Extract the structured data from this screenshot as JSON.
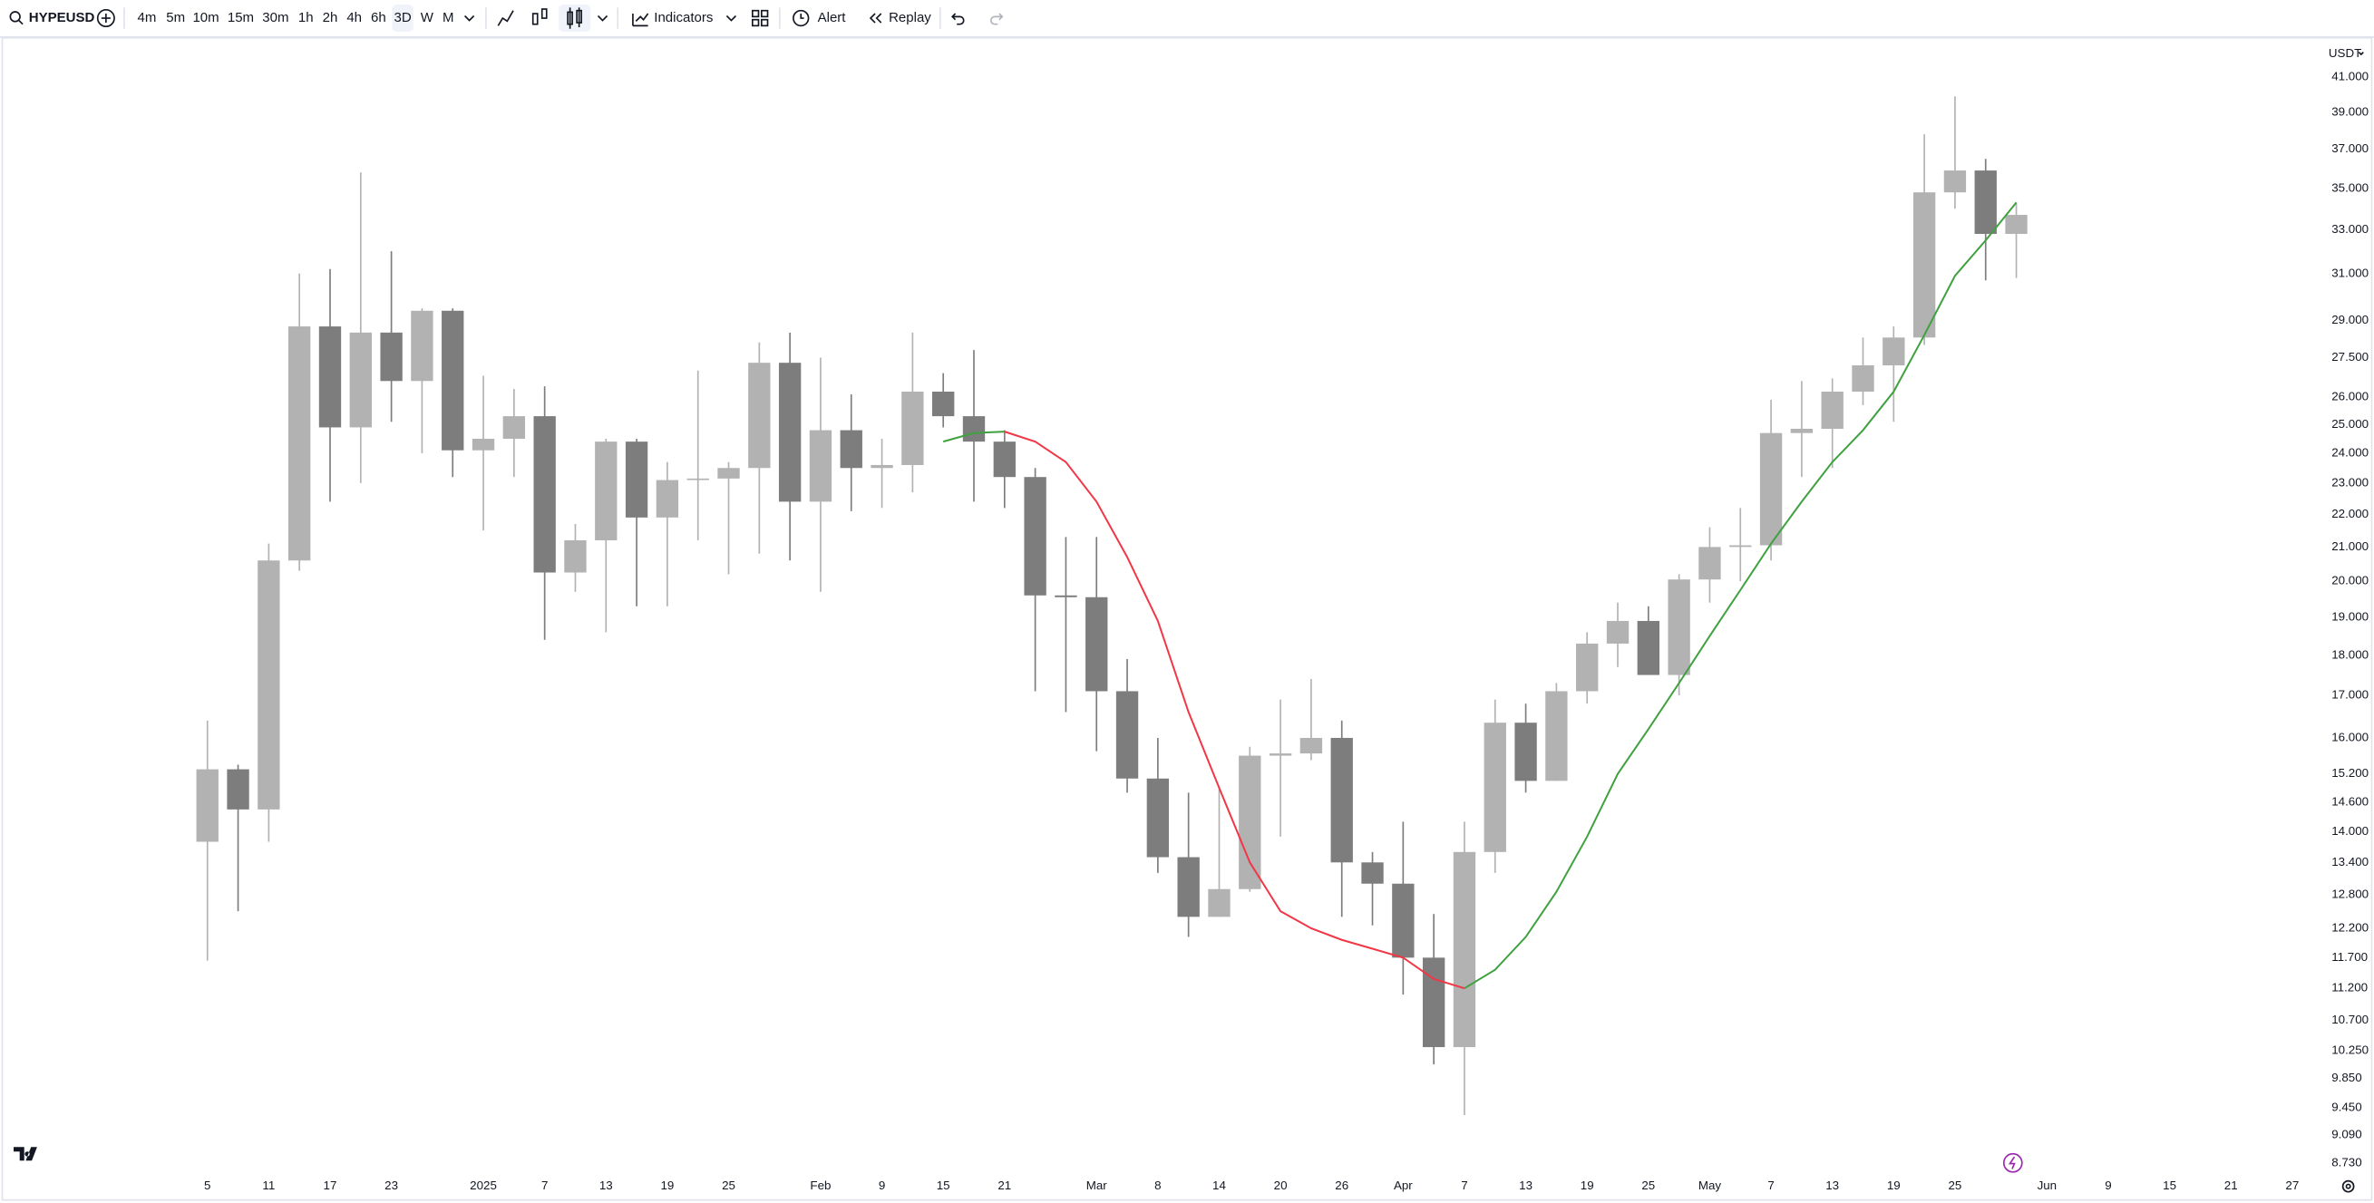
{
  "toolbar": {
    "symbol": "HYPEUSD",
    "intervals": [
      "4m",
      "5m",
      "10m",
      "15m",
      "30m",
      "1h",
      "2h",
      "4h",
      "6h",
      "3D",
      "W",
      "M"
    ],
    "active_interval": "3D",
    "indicators": "Indicators",
    "alert": "Alert",
    "replay": "Replay"
  },
  "chart_data": {
    "type": "candlestick",
    "currency": "USDT",
    "categories": [
      "5",
      null,
      "11",
      null,
      "17",
      null,
      "23",
      null,
      null,
      "2025",
      null,
      "7",
      null,
      "13",
      null,
      "19",
      null,
      "25",
      null,
      null,
      "Feb",
      null,
      "9",
      null,
      "15",
      null,
      "21",
      null,
      null,
      "Mar",
      null,
      "8",
      null,
      "14",
      null,
      "20",
      null,
      "26",
      null,
      "Apr",
      null,
      "7",
      null,
      "13",
      null,
      "19",
      null,
      "25",
      null,
      "May",
      null,
      "7",
      null,
      "13",
      null,
      "19",
      null,
      "25",
      null,
      null,
      "Jun",
      null,
      "9",
      null,
      "15",
      null,
      "21",
      null,
      "27"
    ],
    "open": [
      13.8,
      15.3,
      14.45,
      20.6,
      28.75,
      24.9,
      28.5,
      26.6,
      29.4,
      24.1,
      24.5,
      25.3,
      20.25,
      21.2,
      24.4,
      21.9,
      23.1,
      23.15,
      23.5,
      27.3,
      22.4,
      24.8,
      23.5,
      23.6,
      26.2,
      25.3,
      24.4,
      23.2,
      19.6,
      19.55,
      17.1,
      15.1,
      13.5,
      12.4,
      12.9,
      15.6,
      15.65,
      16.0,
      13.4,
      13.0,
      11.7,
      10.3,
      13.6,
      16.35,
      15.05,
      17.1,
      18.3,
      18.9,
      17.5,
      20.05,
      21.0,
      21.05,
      24.7,
      24.85,
      26.2,
      27.2,
      28.3,
      34.8,
      35.9,
      32.8,
      null,
      null,
      null,
      null,
      null,
      null,
      null,
      null,
      null
    ],
    "high": [
      16.4,
      15.4,
      21.1,
      31,
      31.2,
      35.8,
      32,
      29.5,
      29.5,
      26.8,
      26.3,
      26.4,
      21.7,
      24.5,
      24.5,
      23.7,
      27,
      23.7,
      28.1,
      28.5,
      27.5,
      26.1,
      24.5,
      28.5,
      26.9,
      27.8,
      24.8,
      23.5,
      21.3,
      21.3,
      17.9,
      16.0,
      14.8,
      14.9,
      15.8,
      16.9,
      17.4,
      16.4,
      13.6,
      14.2,
      12.45,
      14.2,
      16.9,
      16.8,
      17.3,
      18.6,
      19.4,
      19.3,
      20.2,
      21.6,
      22.2,
      25.9,
      26.6,
      26.7,
      28.3,
      28.75,
      37.8,
      39.9,
      36.5,
      34.3,
      null,
      null,
      null,
      null,
      null,
      null,
      null,
      null,
      null
    ],
    "low": [
      11.65,
      12.5,
      13.8,
      20.3,
      22.4,
      23,
      25.1,
      24,
      23.2,
      21.5,
      23.2,
      18.4,
      19.7,
      18.6,
      19.3,
      19.3,
      21.2,
      20.2,
      20.8,
      20.6,
      19.7,
      22.1,
      22.2,
      22.7,
      24.9,
      22.4,
      22.2,
      17.1,
      16.6,
      15.7,
      14.8,
      13.2,
      12.05,
      12.4,
      12.85,
      13.9,
      15.5,
      12.4,
      12.25,
      11.1,
      10.05,
      9.35,
      13.2,
      14.8,
      15.05,
      16.8,
      17.7,
      17.5,
      17.0,
      19.4,
      20.0,
      20.6,
      23.2,
      23.5,
      25.7,
      25.1,
      28.0,
      34.0,
      30.7,
      30.8,
      null,
      null,
      null,
      null,
      null,
      null,
      null,
      null,
      null
    ],
    "close": [
      15.3,
      14.45,
      20.6,
      28.75,
      24.9,
      28.5,
      26.6,
      29.4,
      24.1,
      24.5,
      25.3,
      20.25,
      21.2,
      24.4,
      21.9,
      23.1,
      23.15,
      23.5,
      27.3,
      22.4,
      24.8,
      23.5,
      23.6,
      26.2,
      25.3,
      24.4,
      23.2,
      19.6,
      19.55,
      17.1,
      15.1,
      13.5,
      12.4,
      12.9,
      15.6,
      15.65,
      16.0,
      13.4,
      13.0,
      11.7,
      10.3,
      13.6,
      16.35,
      15.05,
      17.1,
      18.3,
      18.9,
      17.5,
      20.05,
      21.0,
      21.05,
      24.7,
      24.85,
      26.2,
      27.2,
      28.3,
      34.8,
      35.9,
      32.8,
      33.7,
      null,
      null,
      null,
      null,
      null,
      null,
      null,
      null,
      null
    ],
    "up_color": "#b2b2b2",
    "down_color": "#7d7d7d",
    "moving_average": {
      "values": [
        null,
        null,
        null,
        null,
        null,
        null,
        null,
        null,
        null,
        null,
        null,
        null,
        null,
        null,
        null,
        null,
        null,
        null,
        null,
        null,
        null,
        null,
        null,
        null,
        24.4,
        24.7,
        24.75,
        24.4,
        23.7,
        22.4,
        20.7,
        18.9,
        16.6,
        14.9,
        13.4,
        12.5,
        12.2,
        12.0,
        11.85,
        11.7,
        11.35,
        11.2,
        11.5,
        12.05,
        12.85,
        13.9,
        15.2,
        16.2,
        17.3,
        18.5,
        19.75,
        21.1,
        22.4,
        23.7,
        24.8,
        26.2,
        28.4,
        30.9,
        32.5,
        34.3,
        null,
        null,
        null,
        null,
        null,
        null,
        null,
        null,
        null
      ],
      "up_color": "#3fa13f",
      "down_color": "#f23645"
    },
    "log_scale": true,
    "grid": false,
    "ylim": [
      8.62,
      43.2
    ],
    "yticks": [
      {
        "value": 41,
        "label": "41.000"
      },
      {
        "value": 39,
        "label": "39.000"
      },
      {
        "value": 37,
        "label": "37.000"
      },
      {
        "value": 35,
        "label": "35.000"
      },
      {
        "value": 33,
        "label": "33.000"
      },
      {
        "value": 31,
        "label": "31.000"
      },
      {
        "value": 29,
        "label": "29.000"
      },
      {
        "value": 27.5,
        "label": "27.500"
      },
      {
        "value": 26,
        "label": "26.000"
      },
      {
        "value": 25,
        "label": "25.000"
      },
      {
        "value": 24,
        "label": "24.000"
      },
      {
        "value": 23,
        "label": "23.000"
      },
      {
        "value": 22,
        "label": "22.000"
      },
      {
        "value": 21,
        "label": "21.000"
      },
      {
        "value": 20,
        "label": "20.000"
      },
      {
        "value": 19,
        "label": "19.000"
      },
      {
        "value": 18,
        "label": "18.000"
      },
      {
        "value": 17,
        "label": "17.000"
      },
      {
        "value": 16,
        "label": "16.000"
      },
      {
        "value": 15.2,
        "label": "15.200"
      },
      {
        "value": 14.6,
        "label": "14.600"
      },
      {
        "value": 14,
        "label": "14.000"
      },
      {
        "value": 13.4,
        "label": "13.400"
      },
      {
        "value": 12.8,
        "label": "12.800"
      },
      {
        "value": 12.2,
        "label": "12.200"
      },
      {
        "value": 11.7,
        "label": "11.700"
      },
      {
        "value": 11.2,
        "label": "11.200"
      },
      {
        "value": 10.7,
        "label": "10.700"
      },
      {
        "value": 10.25,
        "label": "10.250"
      },
      {
        "value": 9.85,
        "label": "9.850"
      },
      {
        "value": 9.45,
        "label": "9.450"
      },
      {
        "value": 9.09,
        "label": "9.090"
      },
      {
        "value": 8.73,
        "label": "8.730"
      }
    ]
  }
}
